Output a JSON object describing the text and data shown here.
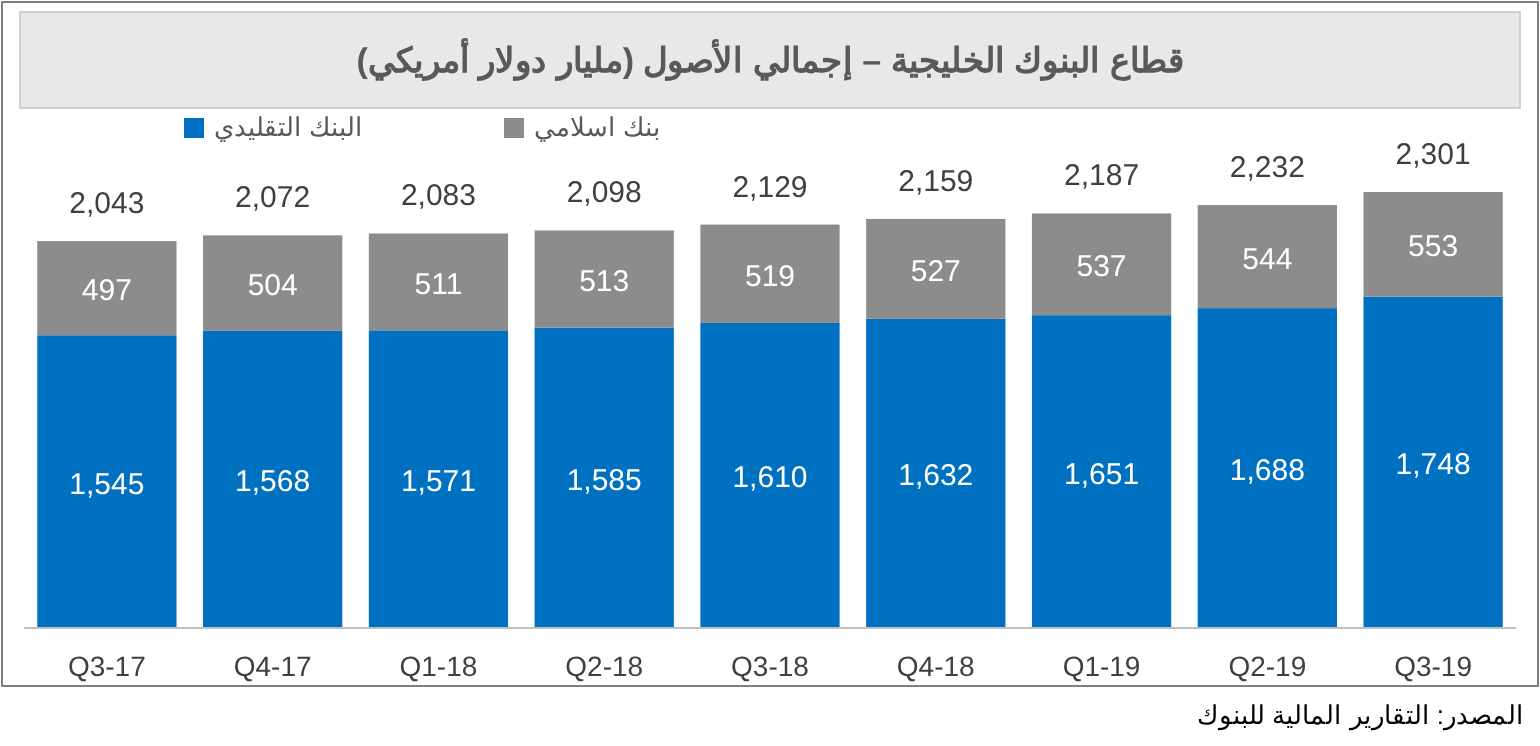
{
  "chart_data": {
    "type": "bar",
    "title": "قطاع البنوك الخليجية – إجمالي الأصول (مليار دولار أمريكي)",
    "categories": [
      "Q3-17",
      "Q4-17",
      "Q1-18",
      "Q2-18",
      "Q3-18",
      "Q4-18",
      "Q1-19",
      "Q2-19",
      "Q3-19"
    ],
    "stacked": true,
    "legend": "top left",
    "series": [
      {
        "name": "البنك التقليدي",
        "color": "#0070c0",
        "values": [
          1545,
          1568,
          1571,
          1585,
          1610,
          1632,
          1651,
          1688,
          1748
        ],
        "value_labels": [
          "1,545",
          "1,568",
          "1,571",
          "1,585",
          "1,610",
          "1,632",
          "1,651",
          "1,688",
          "1,748"
        ]
      },
      {
        "name": "بنك اسلامي",
        "color": "#8c8c8c",
        "values": [
          497,
          504,
          511,
          513,
          519,
          527,
          537,
          544,
          553
        ],
        "value_labels": [
          "497",
          "504",
          "511",
          "513",
          "519",
          "527",
          "537",
          "544",
          "553"
        ]
      }
    ],
    "totals": [
      "2,043",
      "2,072",
      "2,083",
      "2,098",
      "2,129",
      "2,159",
      "2,187",
      "2,232",
      "2,301"
    ],
    "annotations": [
      "المصدر: التقارير المالية للبنوك"
    ]
  }
}
